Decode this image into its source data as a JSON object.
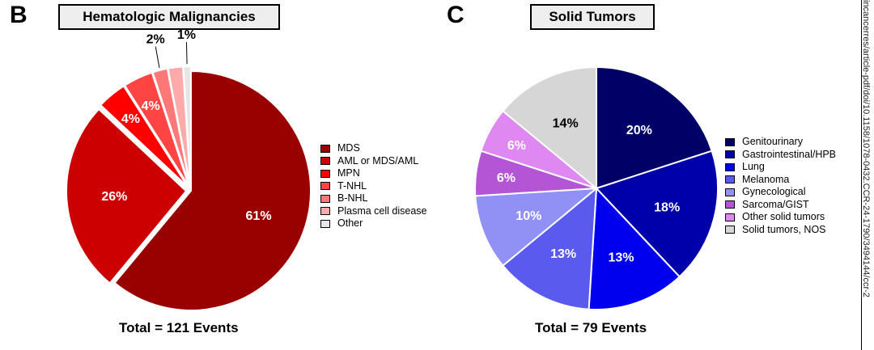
{
  "chart_data": [
    {
      "type": "pie",
      "panel": "B",
      "title": "Hematologic Malignancies",
      "total_label": "Total = 121 Events",
      "categories": [
        "MDS",
        "AML or MDS/AML",
        "MPN",
        "T-NHL",
        "B-NHL",
        "Plasma cell disease",
        "Other"
      ],
      "values": [
        61,
        26,
        4,
        4,
        2,
        2,
        1
      ],
      "labels": [
        "61%",
        "26%",
        "4%",
        "4%",
        "2%",
        "",
        "1%"
      ],
      "colors": [
        "#990000",
        "#cc0000",
        "#ff0000",
        "#ff4444",
        "#ff7777",
        "#ffaaaa",
        "#e6e6e6"
      ],
      "legend_position": "right"
    },
    {
      "type": "pie",
      "panel": "C",
      "title": "Solid Tumors",
      "total_label": "Total = 79 Events",
      "categories": [
        "Genitourinary",
        "Gastrointestinal/HPB",
        "Lung",
        "Melanoma",
        "Gynecological",
        "Sarcoma/GIST",
        "Other solid tumors",
        "Solid tumors, NOS"
      ],
      "values": [
        20,
        18,
        13,
        13,
        10,
        6,
        6,
        14
      ],
      "labels": [
        "20%",
        "18%",
        "13%",
        "13%",
        "10%",
        "6%",
        "6%",
        "14%"
      ],
      "colors": [
        "#000066",
        "#0000aa",
        "#0000ee",
        "#5a5aee",
        "#9090f5",
        "#b455d5",
        "#e088f2",
        "#d6d6d6"
      ],
      "legend_position": "right"
    }
  ],
  "side_text": "incancerres/article-pdf/doi/10.1158/1078-0432.CCR-24-1790/3494144/ccr-2"
}
